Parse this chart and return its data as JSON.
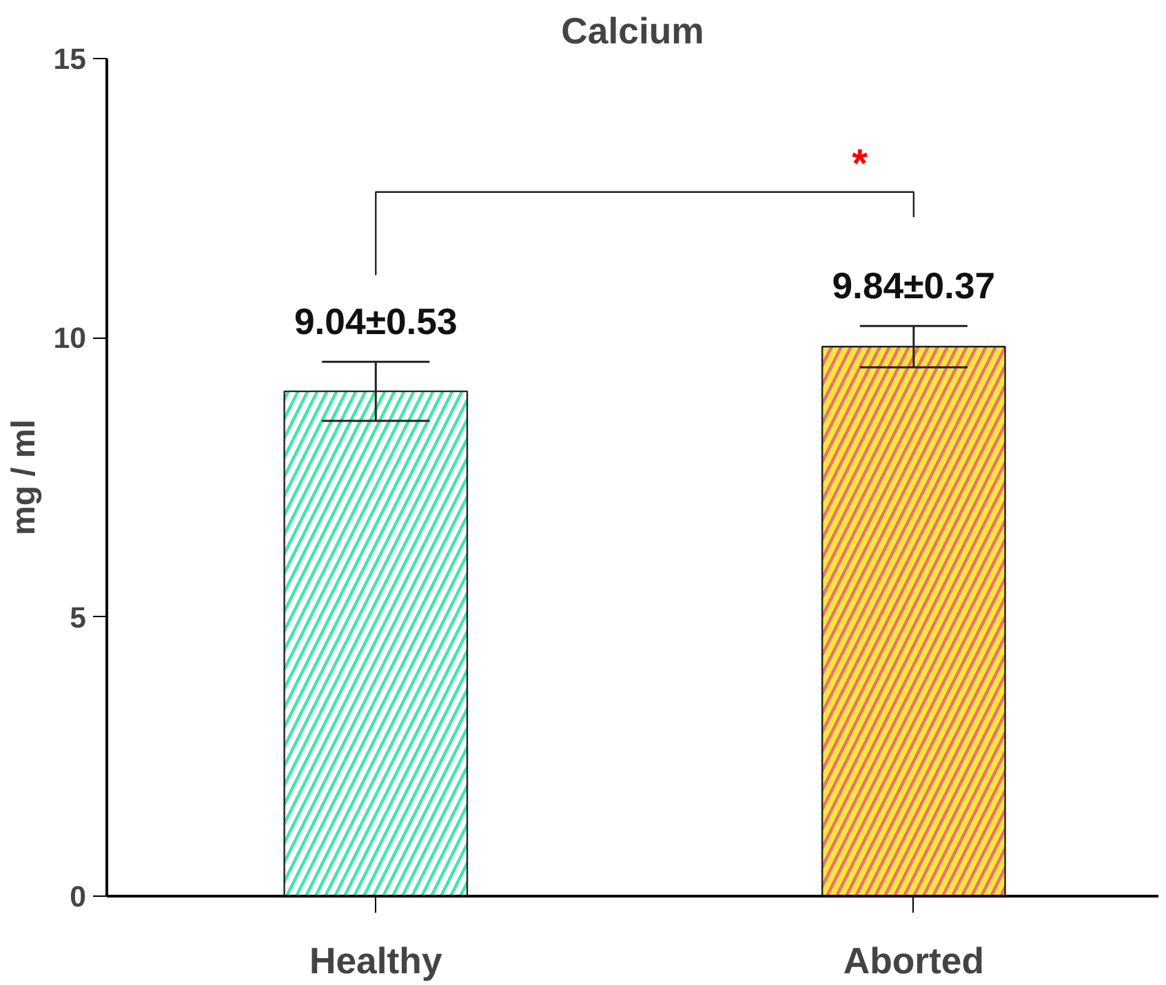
{
  "chart_data": {
    "type": "bar",
    "title": "Calcium",
    "ylabel": "mg / ml",
    "categories": [
      "Healthy",
      "Aborted"
    ],
    "values": [
      9.04,
      9.84
    ],
    "colors": [
      "#3ee8a8",
      "#f2706a"
    ],
    "errors": [
      0.53,
      0.37
    ],
    "value_labels": [
      "9.04±0.53",
      "9.84±0.37"
    ],
    "annotations": [
      "*"
    ],
    "ylim": [
      0,
      15
    ],
    "yticks": [
      0,
      5,
      10,
      15
    ],
    "grid": false
  }
}
